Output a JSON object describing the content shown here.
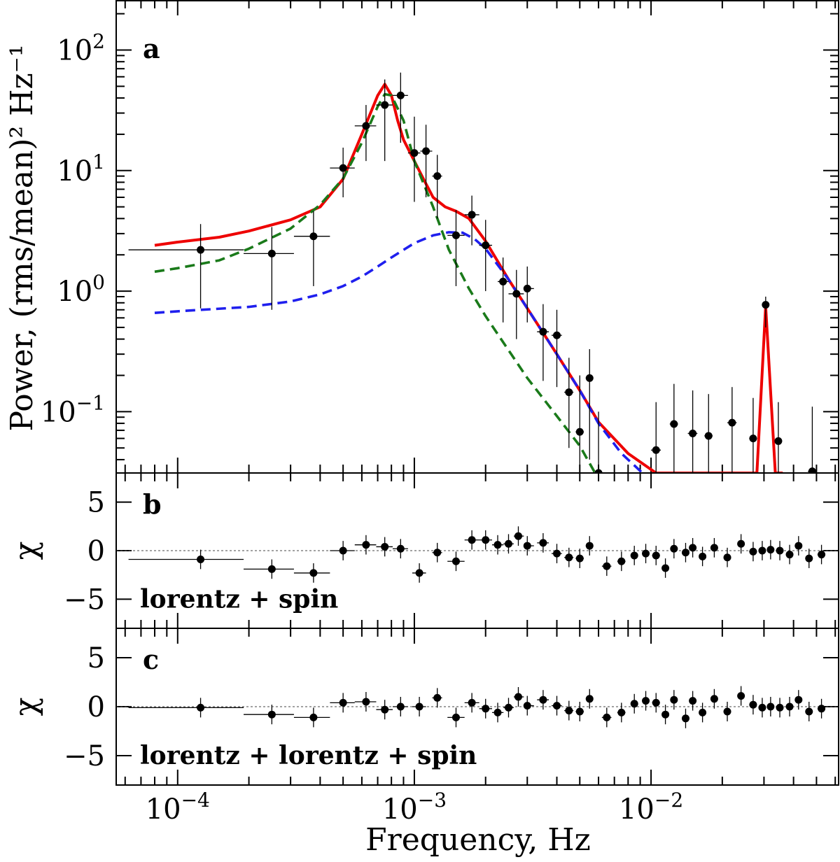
{
  "chart_data": [
    {
      "panel": "a",
      "type": "scatter",
      "xscale": "log",
      "yscale": "log",
      "xlim": [
        5.5e-05,
        0.062
      ],
      "ylim": [
        0.031,
        260
      ],
      "xlabel": "Frequency, Hz",
      "ylabel": "Power, (rms/mean)² Hz⁻¹",
      "yticks": [
        {
          "value": 100,
          "base": "10",
          "exp": "2"
        },
        {
          "value": 10,
          "base": "10",
          "exp": "1"
        },
        {
          "value": 1,
          "base": "10",
          "exp": "0"
        },
        {
          "value": 0.1,
          "base": "10",
          "exp": "−1"
        }
      ],
      "points": [
        {
          "x": 0.000125,
          "y": 2.2,
          "xlo": 6.2e-05,
          "xhi": 0.00019,
          "ylo": 0.72,
          "yhi": 3.6
        },
        {
          "x": 0.00025,
          "y": 2.05,
          "xlo": 0.00019,
          "xhi": 0.00031,
          "ylo": 0.7,
          "yhi": 3.4
        },
        {
          "x": 0.000375,
          "y": 2.85,
          "xlo": 0.00031,
          "xhi": 0.00044,
          "ylo": 1.1,
          "yhi": 4.6
        },
        {
          "x": 0.0005,
          "y": 10.5,
          "xlo": 0.00044,
          "xhi": 0.00056,
          "ylo": 6.0,
          "yhi": 15.5
        },
        {
          "x": 0.000625,
          "y": 23.5,
          "xlo": 0.00056,
          "xhi": 0.00069,
          "ylo": 12.0,
          "yhi": 35
        },
        {
          "x": 0.00075,
          "y": 35,
          "xlo": 0.00069,
          "xhi": 0.00081,
          "ylo": 12,
          "yhi": 57
        },
        {
          "x": 0.000875,
          "y": 42,
          "xlo": 0.00081,
          "xhi": 0.00094,
          "ylo": 17,
          "yhi": 65
        },
        {
          "x": 0.001,
          "y": 14,
          "xlo": 0.00094,
          "xhi": 0.00106,
          "ylo": 5.5,
          "yhi": 28
        },
        {
          "x": 0.00112,
          "y": 14.5,
          "xlo": 0.00106,
          "xhi": 0.00119,
          "ylo": 6,
          "yhi": 24
        },
        {
          "x": 0.00125,
          "y": 9,
          "xlo": 0.00119,
          "xhi": 0.00131,
          "ylo": 4,
          "yhi": 13.5
        },
        {
          "x": 0.0015,
          "y": 2.9,
          "xlo": 0.00138,
          "xhi": 0.00163,
          "ylo": 1.1,
          "yhi": 4.7
        },
        {
          "x": 0.00175,
          "y": 4.3,
          "xlo": 0.00163,
          "xhi": 0.00188,
          "ylo": 2.4,
          "yhi": 6.2
        },
        {
          "x": 0.002,
          "y": 2.4,
          "xlo": 0.00188,
          "xhi": 0.00213,
          "ylo": 1.0,
          "yhi": 3.9
        },
        {
          "x": 0.00237,
          "y": 1.2,
          "xlo": 0.00225,
          "xhi": 0.0025,
          "ylo": 0.55,
          "yhi": 1.9
        },
        {
          "x": 0.0027,
          "y": 0.95,
          "xlo": 0.0025,
          "xhi": 0.0029,
          "ylo": 0.4,
          "yhi": 1.5
        },
        {
          "x": 0.003,
          "y": 1.05,
          "xlo": 0.0029,
          "xhi": 0.0032,
          "ylo": 0.55,
          "yhi": 1.6
        },
        {
          "x": 0.0035,
          "y": 0.46,
          "xlo": 0.0033,
          "xhi": 0.0037,
          "ylo": 0.18,
          "yhi": 0.78
        },
        {
          "x": 0.004,
          "y": 0.43,
          "xlo": 0.0038,
          "xhi": 0.0042,
          "ylo": 0.16,
          "yhi": 0.7
        },
        {
          "x": 0.0045,
          "y": 0.145,
          "xlo": 0.0043,
          "xhi": 0.0047,
          "ylo": 0.05,
          "yhi": 0.28
        },
        {
          "x": 0.005,
          "y": 0.068,
          "xlo": 0.0048,
          "xhi": 0.0052,
          "ylo": 0.031,
          "yhi": 0.2
        },
        {
          "x": 0.0055,
          "y": 0.19,
          "xlo": 0.0053,
          "xhi": 0.0057,
          "ylo": 0.04,
          "yhi": 0.33
        },
        {
          "x": 0.006,
          "y": 0.03,
          "xlo": 0.0059,
          "xhi": 0.0062,
          "ylo": 0.031,
          "yhi": 0.1
        },
        {
          "x": 0.0105,
          "y": 0.048,
          "xlo": 0.01,
          "xhi": 0.011,
          "ylo": 0.031,
          "yhi": 0.12
        },
        {
          "x": 0.0125,
          "y": 0.079,
          "xlo": 0.012,
          "xhi": 0.013,
          "ylo": 0.031,
          "yhi": 0.17
        },
        {
          "x": 0.015,
          "y": 0.066,
          "xlo": 0.0143,
          "xhi": 0.0157,
          "ylo": 0.031,
          "yhi": 0.15
        },
        {
          "x": 0.0175,
          "y": 0.063,
          "xlo": 0.0168,
          "xhi": 0.0182,
          "ylo": 0.031,
          "yhi": 0.14
        },
        {
          "x": 0.022,
          "y": 0.081,
          "xlo": 0.021,
          "xhi": 0.023,
          "ylo": 0.031,
          "yhi": 0.16
        },
        {
          "x": 0.027,
          "y": 0.06,
          "xlo": 0.026,
          "xhi": 0.028,
          "ylo": 0.031,
          "yhi": 0.13
        },
        {
          "x": 0.0305,
          "y": 0.77,
          "xlo": 0.0295,
          "xhi": 0.0315,
          "ylo": 0.5,
          "yhi": 0.9
        },
        {
          "x": 0.0345,
          "y": 0.057,
          "xlo": 0.0335,
          "xhi": 0.0355,
          "ylo": 0.031,
          "yhi": 0.12
        },
        {
          "x": 0.048,
          "y": 0.032,
          "xlo": 0.046,
          "xhi": 0.05,
          "ylo": 0.031,
          "yhi": 0.11
        }
      ],
      "series": [
        {
          "style": "solid",
          "color": "#ee0000",
          "x": [
            8e-05,
            0.0001,
            0.00015,
            0.0002,
            0.0003,
            0.0004,
            0.0005,
            0.0006,
            0.0007,
            0.00075,
            0.0008,
            0.00085,
            0.0009,
            0.001,
            0.0011,
            0.0012,
            0.00135,
            0.0015,
            0.0017,
            0.002,
            0.0025,
            0.003,
            0.004,
            0.005,
            0.006,
            0.008,
            0.0105,
            0.028,
            0.0305,
            0.0335,
            0.036
          ],
          "y": [
            2.4,
            2.55,
            2.8,
            3.15,
            3.9,
            5.0,
            8.5,
            20,
            42,
            52,
            42,
            26,
            18,
            12,
            8.3,
            6.0,
            5.0,
            4.6,
            4.0,
            2.6,
            1.25,
            0.72,
            0.3,
            0.15,
            0.082,
            0.045,
            0.031,
            0.031,
            0.75,
            0.031,
            0.031
          ]
        },
        {
          "style": "dashed",
          "color": "#1a7a1a",
          "x": [
            8e-05,
            0.0001,
            0.00015,
            0.0002,
            0.0003,
            0.0004,
            0.0005,
            0.0006,
            0.0007,
            0.00075,
            0.0008,
            0.0009,
            0.001,
            0.0012,
            0.0014,
            0.0017,
            0.002,
            0.003,
            0.004,
            0.005,
            0.0058
          ],
          "y": [
            1.45,
            1.55,
            1.8,
            2.25,
            3.3,
            5.2,
            8.6,
            17,
            34,
            43,
            42,
            26,
            12,
            5,
            2.2,
            1.05,
            0.62,
            0.19,
            0.092,
            0.052,
            0.031
          ]
        },
        {
          "style": "dashed",
          "color": "#1f1fee",
          "x": [
            8e-05,
            0.0001,
            0.0002,
            0.0003,
            0.0004,
            0.0005,
            0.0006,
            0.0007,
            0.0008,
            0.0009,
            0.001,
            0.0012,
            0.0014,
            0.0016,
            0.0018,
            0.002,
            0.0025,
            0.003,
            0.004,
            0.005,
            0.006,
            0.0075,
            0.0092
          ],
          "y": [
            0.66,
            0.68,
            0.74,
            0.82,
            0.94,
            1.1,
            1.32,
            1.6,
            1.9,
            2.2,
            2.5,
            2.9,
            3.08,
            3.05,
            2.7,
            2.25,
            1.25,
            0.72,
            0.3,
            0.15,
            0.08,
            0.045,
            0.031
          ]
        }
      ]
    },
    {
      "panel": "b",
      "type": "scatter",
      "xscale": "log",
      "ylim": [
        -8,
        8
      ],
      "ylabel": "χ",
      "annotation": "lorentz + spin",
      "yticks": [
        {
          "value": 5,
          "label": "5"
        },
        {
          "value": 0,
          "label": "0"
        },
        {
          "value": -5,
          "label": "−5"
        }
      ],
      "points": [
        {
          "x": 0.000125,
          "y": -0.9,
          "xlo": 6.2e-05,
          "xhi": 0.00019
        },
        {
          "x": 0.00025,
          "y": -1.9,
          "xlo": 0.00019,
          "xhi": 0.00031
        },
        {
          "x": 0.000375,
          "y": -2.3,
          "xlo": 0.00031,
          "xhi": 0.00044
        },
        {
          "x": 0.0005,
          "y": 0.0,
          "xlo": 0.00044,
          "xhi": 0.00056
        },
        {
          "x": 0.000625,
          "y": 0.6,
          "xlo": 0.00056,
          "xhi": 0.00069
        },
        {
          "x": 0.00075,
          "y": 0.4,
          "xlo": 0.00069,
          "xhi": 0.00081
        },
        {
          "x": 0.000875,
          "y": 0.2,
          "xlo": 0.00081,
          "xhi": 0.00094
        },
        {
          "x": 0.00105,
          "y": -2.3,
          "xlo": 0.00098,
          "xhi": 0.00112
        },
        {
          "x": 0.00125,
          "y": -0.2,
          "xlo": 0.00119,
          "xhi": 0.00131
        },
        {
          "x": 0.0015,
          "y": -1.1,
          "xlo": 0.00138,
          "xhi": 0.00163
        },
        {
          "x": 0.00175,
          "y": 1.1,
          "xlo": 0.00163,
          "xhi": 0.00188
        },
        {
          "x": 0.002,
          "y": 1.1,
          "xlo": 0.00188,
          "xhi": 0.00213
        },
        {
          "x": 0.00225,
          "y": 0.6,
          "xlo": 0.00213,
          "xhi": 0.00238
        },
        {
          "x": 0.0025,
          "y": 0.7,
          "xlo": 0.00238,
          "xhi": 0.00263
        },
        {
          "x": 0.00275,
          "y": 1.5,
          "xlo": 0.00263,
          "xhi": 0.0029
        },
        {
          "x": 0.003,
          "y": 0.5,
          "xlo": 0.0029,
          "xhi": 0.0032
        },
        {
          "x": 0.0035,
          "y": 0.8,
          "xlo": 0.0033,
          "xhi": 0.0037
        },
        {
          "x": 0.004,
          "y": -0.3,
          "xlo": 0.0038,
          "xhi": 0.0042
        },
        {
          "x": 0.0045,
          "y": -0.7,
          "xlo": 0.0043,
          "xhi": 0.0047
        },
        {
          "x": 0.005,
          "y": -0.8,
          "xlo": 0.0048,
          "xhi": 0.0052
        },
        {
          "x": 0.0055,
          "y": 0.5,
          "xlo": 0.0053,
          "xhi": 0.0057
        },
        {
          "x": 0.0065,
          "y": -1.6,
          "xlo": 0.0062,
          "xhi": 0.0068
        },
        {
          "x": 0.0075,
          "y": -1.1,
          "xlo": 0.0072,
          "xhi": 0.0078
        },
        {
          "x": 0.0085,
          "y": -0.5,
          "xlo": 0.0082,
          "xhi": 0.0088
        },
        {
          "x": 0.0095,
          "y": -0.3,
          "xlo": 0.0092,
          "xhi": 0.0098
        },
        {
          "x": 0.0105,
          "y": -0.5,
          "xlo": 0.0101,
          "xhi": 0.0109
        },
        {
          "x": 0.0115,
          "y": -1.8,
          "xlo": 0.0111,
          "xhi": 0.0119
        },
        {
          "x": 0.0125,
          "y": 0.2,
          "xlo": 0.0121,
          "xhi": 0.0129
        },
        {
          "x": 0.014,
          "y": -0.2,
          "xlo": 0.0135,
          "xhi": 0.0145
        },
        {
          "x": 0.015,
          "y": 0.3,
          "xlo": 0.0145,
          "xhi": 0.0155
        },
        {
          "x": 0.0165,
          "y": -0.6,
          "xlo": 0.016,
          "xhi": 0.017
        },
        {
          "x": 0.0185,
          "y": 0.3,
          "xlo": 0.018,
          "xhi": 0.019
        },
        {
          "x": 0.021,
          "y": -0.7,
          "xlo": 0.0203,
          "xhi": 0.0217
        },
        {
          "x": 0.024,
          "y": 0.7,
          "xlo": 0.0232,
          "xhi": 0.0248
        },
        {
          "x": 0.027,
          "y": -0.1,
          "xlo": 0.026,
          "xhi": 0.028
        },
        {
          "x": 0.0295,
          "y": 0.0,
          "xlo": 0.0285,
          "xhi": 0.0305
        },
        {
          "x": 0.032,
          "y": 0.1,
          "xlo": 0.031,
          "xhi": 0.033
        },
        {
          "x": 0.035,
          "y": 0.0,
          "xlo": 0.034,
          "xhi": 0.036
        },
        {
          "x": 0.0385,
          "y": -0.4,
          "xlo": 0.0372,
          "xhi": 0.0398
        },
        {
          "x": 0.042,
          "y": 0.5,
          "xlo": 0.0405,
          "xhi": 0.0435
        },
        {
          "x": 0.0465,
          "y": -0.8,
          "xlo": 0.045,
          "xhi": 0.048
        },
        {
          "x": 0.0525,
          "y": -0.4,
          "xlo": 0.0505,
          "xhi": 0.0545
        }
      ]
    },
    {
      "panel": "c",
      "type": "scatter",
      "xscale": "log",
      "ylim": [
        -8,
        8
      ],
      "ylabel": "χ",
      "xlabel": "Frequency, Hz",
      "annotation": "lorentz + lorentz + spin",
      "yticks": [
        {
          "value": 5,
          "label": "5"
        },
        {
          "value": 0,
          "label": "0"
        },
        {
          "value": -5,
          "label": "−5"
        }
      ],
      "xticks": [
        {
          "value": 0.0001,
          "base": "10",
          "exp": "−4"
        },
        {
          "value": 0.001,
          "base": "10",
          "exp": "−3"
        },
        {
          "value": 0.01,
          "base": "10",
          "exp": "−2"
        }
      ],
      "points": [
        {
          "x": 0.000125,
          "y": -0.1,
          "xlo": 6.2e-05,
          "xhi": 0.00019
        },
        {
          "x": 0.00025,
          "y": -0.8,
          "xlo": 0.00019,
          "xhi": 0.00031
        },
        {
          "x": 0.000375,
          "y": -1.1,
          "xlo": 0.00031,
          "xhi": 0.00044
        },
        {
          "x": 0.0005,
          "y": 0.4,
          "xlo": 0.00044,
          "xhi": 0.00056
        },
        {
          "x": 0.000625,
          "y": 0.5,
          "xlo": 0.00056,
          "xhi": 0.00069
        },
        {
          "x": 0.00075,
          "y": -0.3,
          "xlo": 0.00069,
          "xhi": 0.00081
        },
        {
          "x": 0.000875,
          "y": 0.0,
          "xlo": 0.00081,
          "xhi": 0.00094
        },
        {
          "x": 0.00105,
          "y": 0.0,
          "xlo": 0.00098,
          "xhi": 0.00112
        },
        {
          "x": 0.00125,
          "y": 0.9,
          "xlo": 0.00119,
          "xhi": 0.00131
        },
        {
          "x": 0.0015,
          "y": -1.1,
          "xlo": 0.00138,
          "xhi": 0.00163
        },
        {
          "x": 0.00175,
          "y": 0.4,
          "xlo": 0.00163,
          "xhi": 0.00188
        },
        {
          "x": 0.002,
          "y": -0.2,
          "xlo": 0.00188,
          "xhi": 0.00213
        },
        {
          "x": 0.00225,
          "y": -0.6,
          "xlo": 0.00213,
          "xhi": 0.00238
        },
        {
          "x": 0.0025,
          "y": -0.1,
          "xlo": 0.00238,
          "xhi": 0.00263
        },
        {
          "x": 0.00275,
          "y": 1.0,
          "xlo": 0.00263,
          "xhi": 0.0029
        },
        {
          "x": 0.003,
          "y": 0.1,
          "xlo": 0.0029,
          "xhi": 0.0032
        },
        {
          "x": 0.0035,
          "y": 0.7,
          "xlo": 0.0033,
          "xhi": 0.0037
        },
        {
          "x": 0.004,
          "y": 0.1,
          "xlo": 0.0038,
          "xhi": 0.0042
        },
        {
          "x": 0.0045,
          "y": -0.4,
          "xlo": 0.0043,
          "xhi": 0.0047
        },
        {
          "x": 0.005,
          "y": -0.5,
          "xlo": 0.0048,
          "xhi": 0.0052
        },
        {
          "x": 0.0055,
          "y": 0.8,
          "xlo": 0.0053,
          "xhi": 0.0057
        },
        {
          "x": 0.0065,
          "y": -1.1,
          "xlo": 0.0062,
          "xhi": 0.0068
        },
        {
          "x": 0.0075,
          "y": -0.6,
          "xlo": 0.0072,
          "xhi": 0.0078
        },
        {
          "x": 0.0085,
          "y": 0.3,
          "xlo": 0.0082,
          "xhi": 0.0088
        },
        {
          "x": 0.0095,
          "y": 0.6,
          "xlo": 0.0092,
          "xhi": 0.0098
        },
        {
          "x": 0.0105,
          "y": 0.4,
          "xlo": 0.0101,
          "xhi": 0.0109
        },
        {
          "x": 0.0115,
          "y": -0.8,
          "xlo": 0.0111,
          "xhi": 0.0119
        },
        {
          "x": 0.0125,
          "y": 0.7,
          "xlo": 0.0121,
          "xhi": 0.0129
        },
        {
          "x": 0.014,
          "y": -1.2,
          "xlo": 0.0135,
          "xhi": 0.0145
        },
        {
          "x": 0.015,
          "y": 0.6,
          "xlo": 0.0145,
          "xhi": 0.0155
        },
        {
          "x": 0.0165,
          "y": -0.6,
          "xlo": 0.016,
          "xhi": 0.017
        },
        {
          "x": 0.0185,
          "y": 0.8,
          "xlo": 0.018,
          "xhi": 0.019
        },
        {
          "x": 0.021,
          "y": -0.5,
          "xlo": 0.0203,
          "xhi": 0.0217
        },
        {
          "x": 0.024,
          "y": 1.1,
          "xlo": 0.0232,
          "xhi": 0.0248
        },
        {
          "x": 0.027,
          "y": 0.2,
          "xlo": 0.026,
          "xhi": 0.028
        },
        {
          "x": 0.0295,
          "y": -0.1,
          "xlo": 0.0285,
          "xhi": 0.0305
        },
        {
          "x": 0.032,
          "y": 0.0,
          "xlo": 0.031,
          "xhi": 0.033
        },
        {
          "x": 0.035,
          "y": -0.1,
          "xlo": 0.034,
          "xhi": 0.036
        },
        {
          "x": 0.0385,
          "y": 0.0,
          "xlo": 0.0372,
          "xhi": 0.0398
        },
        {
          "x": 0.042,
          "y": 0.7,
          "xlo": 0.0405,
          "xhi": 0.0435
        },
        {
          "x": 0.0465,
          "y": -0.5,
          "xlo": 0.045,
          "xhi": 0.048
        },
        {
          "x": 0.0525,
          "y": -0.2,
          "xlo": 0.0505,
          "xhi": 0.0545
        }
      ]
    }
  ]
}
